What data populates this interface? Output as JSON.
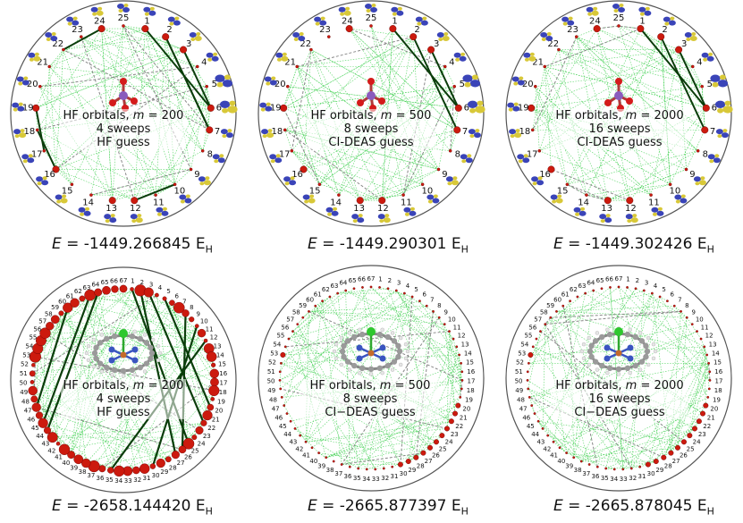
{
  "colors": {
    "circle_border": "#555555",
    "entanglement_line": "#2ecc40",
    "strong_bond": "#0b3d0b",
    "dot_red": "#cc1a0e",
    "orbital_blue": "#3a44b8",
    "orbital_yellow": "#d8c838"
  },
  "panels": [
    {
      "id": "top-left",
      "label_line1": "HF orbitals, ",
      "m_symbol": "m",
      "m_value": " = 200",
      "label_line2": "4 sweeps",
      "label_line3": "HF guess",
      "energy_prefix": "E",
      "energy_value": " = -1449.266845 E",
      "energy_unit_sub": "H",
      "n_orbitals": 25,
      "molecule": "tetrahedral-oxo",
      "orbital_icons": true
    },
    {
      "id": "top-middle",
      "label_line1": "HF orbitals, ",
      "m_symbol": "m",
      "m_value": " = 500",
      "label_line2": "8 sweeps",
      "label_line3": "CI-DEAS guess",
      "energy_prefix": "E",
      "energy_value": " = -1449.290301 E",
      "energy_unit_sub": "H",
      "n_orbitals": 25,
      "molecule": "tetrahedral-oxo",
      "orbital_icons": true
    },
    {
      "id": "top-right",
      "label_line1": "HF orbitals, ",
      "m_symbol": "m",
      "m_value": " = 2000",
      "label_line2": "16 sweeps",
      "label_line3": "CI-DEAS guess",
      "energy_prefix": "E",
      "energy_value": " = -1449.302426 E",
      "energy_unit_sub": "H",
      "n_orbitals": 25,
      "molecule": "tetrahedral-oxo",
      "orbital_icons": true
    },
    {
      "id": "bottom-left",
      "label_line1": "HF orbitals, ",
      "m_symbol": "m",
      "m_value": " = 200",
      "label_line2": "4 sweeps",
      "label_line3": "HF guess",
      "energy_prefix": "E",
      "energy_value": " = -2658.144420 E",
      "energy_unit_sub": "H",
      "n_orbitals": 67,
      "molecule": "porphyrin",
      "orbital_icons": false
    },
    {
      "id": "bottom-middle",
      "label_line1": "HF orbitals, ",
      "m_symbol": "m",
      "m_value": " = 500",
      "label_line2": "8 sweeps",
      "label_line3": "CI−DEAS guess",
      "energy_prefix": "E",
      "energy_value": " = -2665.877397 E",
      "energy_unit_sub": "H",
      "n_orbitals": 67,
      "molecule": "porphyrin",
      "orbital_icons": false
    },
    {
      "id": "bottom-right",
      "label_line1": "HF orbitals, ",
      "m_symbol": "m",
      "m_value": " = 2000",
      "label_line2": "16 sweeps",
      "label_line3": "CI−DEAS guess",
      "energy_prefix": "E",
      "energy_value": " = -2665.878045 E",
      "energy_unit_sub": "H",
      "n_orbitals": 67,
      "molecule": "porphyrin",
      "orbital_icons": false
    }
  ]
}
